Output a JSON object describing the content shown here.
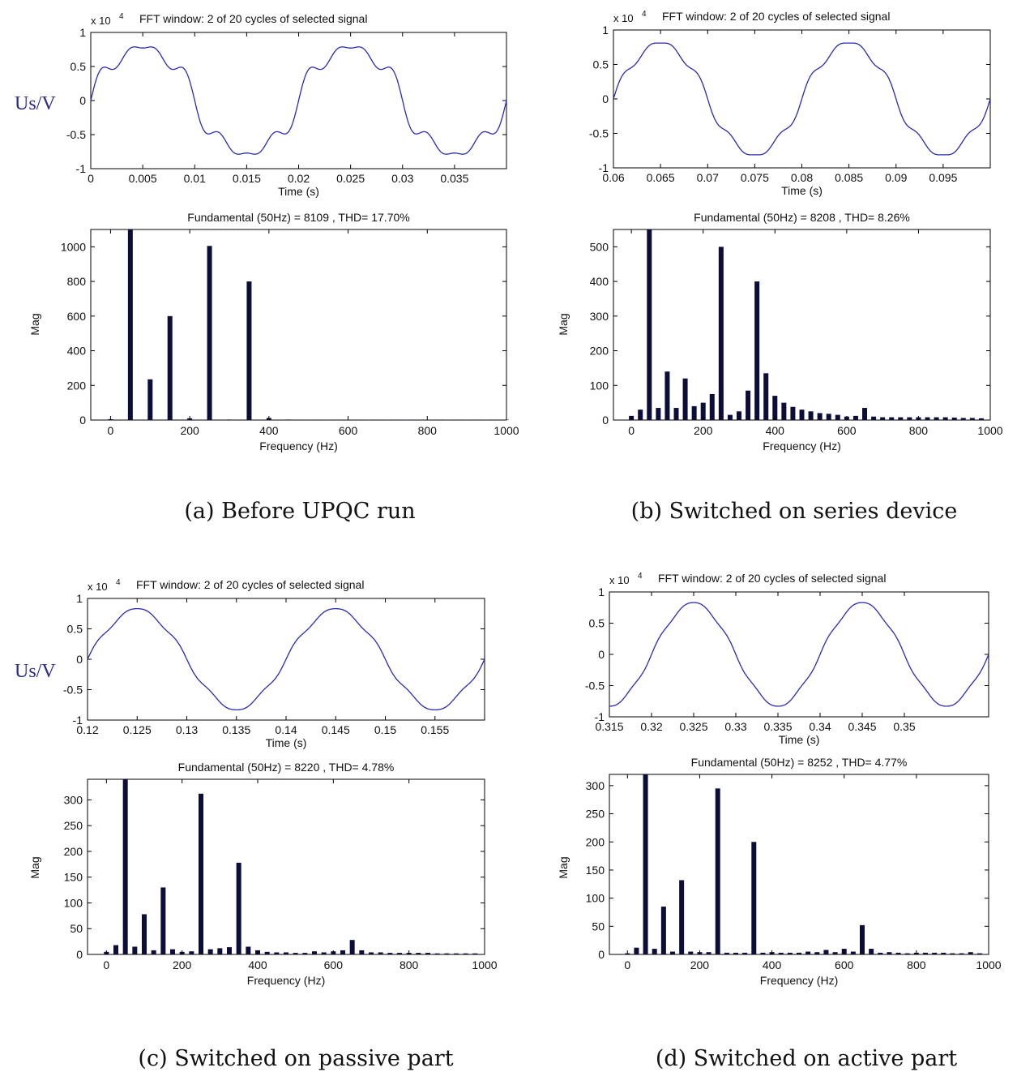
{
  "figure": {
    "captions": [
      "(a) Before UPQC run",
      "(b) Switched on series device",
      "(c) Switched on passive part",
      "(d) Switched on active part"
    ],
    "us_label": "Us/V",
    "colors": {
      "waveform": "#2b2bb0",
      "bars": "#0d0d3a",
      "axes": "#000000"
    }
  },
  "chart_data": [
    {
      "panel": "a",
      "waveform": {
        "type": "line",
        "title": "FFT window: 2 of 20 cycles of selected signal",
        "exponent_label": "x 10",
        "exponent": "4",
        "xlabel": "Time (s)",
        "ylabel": "",
        "xlim": [
          0,
          0.04
        ],
        "ylim": [
          -1,
          1
        ],
        "xticks": [
          "0",
          "0.005",
          "0.01",
          "0.015",
          "0.02",
          "0.025",
          "0.03",
          "0.035"
        ],
        "xtick_values": [
          0,
          0.005,
          0.01,
          0.015,
          0.02,
          0.025,
          0.03,
          0.035
        ],
        "yticks": [
          "1",
          "0.5",
          "0",
          "-0.5",
          "-1"
        ],
        "ytick_values": [
          1,
          0.5,
          0,
          -0.5,
          -1
        ],
        "t0": 0,
        "fundamental": 0.811,
        "harmonics": [
          {
            "n": 3,
            "amp": 0.06
          },
          {
            "n": 5,
            "amp": 0.1
          },
          {
            "n": 7,
            "amp": 0.08
          }
        ]
      },
      "spectrum": {
        "type": "bar",
        "title": "Fundamental (50Hz) = 8109 , THD= 17.70%",
        "xlabel": "Frequency (Hz)",
        "ylabel": "Mag",
        "xlim": [
          -50,
          1000
        ],
        "ylim": [
          0,
          1100
        ],
        "xticks": [
          0,
          200,
          400,
          600,
          800,
          1000
        ],
        "yticks": [
          0,
          200,
          400,
          600,
          800,
          1000
        ],
        "x": [
          0,
          50,
          100,
          150,
          200,
          250,
          300,
          350,
          400,
          450,
          500,
          550,
          600,
          650,
          700,
          750,
          800,
          850,
          900,
          950,
          1000
        ],
        "values": [
          5,
          1100,
          235,
          600,
          10,
          1005,
          3,
          800,
          12,
          3,
          2,
          2,
          2,
          2,
          2,
          2,
          2,
          2,
          2,
          2,
          2
        ]
      }
    },
    {
      "panel": "b",
      "waveform": {
        "type": "line",
        "title": "FFT window: 2 of 20 cycles of selected signal",
        "exponent_label": "x 10",
        "exponent": "4",
        "xlabel": "Time (s)",
        "ylabel": "",
        "xlim": [
          0.06,
          0.1
        ],
        "ylim": [
          -1,
          1
        ],
        "xticks": [
          "0.06",
          "0.065",
          "0.07",
          "0.075",
          "0.08",
          "0.085",
          "0.09",
          "0.095"
        ],
        "xtick_values": [
          0.06,
          0.065,
          0.07,
          0.075,
          0.08,
          0.085,
          0.09,
          0.095
        ],
        "yticks": [
          "1",
          "0.5",
          "0",
          "-0.5",
          "-1"
        ],
        "ytick_values": [
          1,
          0.5,
          0,
          -0.5,
          -1
        ],
        "t0": 0.06,
        "fundamental": 0.821,
        "harmonics": [
          {
            "n": 3,
            "amp": 0.02
          },
          {
            "n": 5,
            "amp": 0.05
          },
          {
            "n": 7,
            "amp": 0.04
          }
        ]
      },
      "spectrum": {
        "type": "bar",
        "title": "Fundamental (50Hz) = 8208 , THD= 8.26%",
        "xlabel": "Frequency (Hz)",
        "ylabel": "Mag",
        "xlim": [
          -50,
          1000
        ],
        "ylim": [
          0,
          550
        ],
        "xticks": [
          0,
          200,
          400,
          600,
          800,
          1000
        ],
        "yticks": [
          0,
          100,
          200,
          300,
          400,
          500
        ],
        "x": [
          0,
          25,
          50,
          75,
          100,
          125,
          150,
          175,
          200,
          225,
          250,
          275,
          300,
          325,
          350,
          375,
          400,
          425,
          450,
          475,
          500,
          525,
          550,
          575,
          600,
          625,
          650,
          675,
          700,
          725,
          750,
          775,
          800,
          825,
          850,
          875,
          900,
          925,
          950,
          975
        ],
        "values": [
          12,
          30,
          550,
          35,
          140,
          35,
          120,
          40,
          50,
          75,
          500,
          15,
          25,
          85,
          400,
          135,
          70,
          50,
          38,
          30,
          25,
          20,
          18,
          15,
          10,
          12,
          35,
          10,
          8,
          8,
          8,
          8,
          8,
          8,
          8,
          8,
          7,
          6,
          6,
          5
        ]
      }
    },
    {
      "panel": "c",
      "waveform": {
        "type": "line",
        "title": "FFT window: 2 of 20 cycles of selected signal",
        "exponent_label": "x 10",
        "exponent": "4",
        "xlabel": "Time (s)",
        "ylabel": "",
        "xlim": [
          0.12,
          0.16
        ],
        "ylim": [
          -1,
          1
        ],
        "xticks": [
          "0.12",
          "0.125",
          "0.13",
          "0.135",
          "0.14",
          "0.145",
          "0.15",
          "0.155"
        ],
        "xtick_values": [
          0.12,
          0.125,
          0.13,
          0.135,
          0.14,
          0.145,
          0.15,
          0.155
        ],
        "yticks": [
          "1",
          "0.5",
          "0",
          "-0.5",
          "-1"
        ],
        "ytick_values": [
          1,
          0.5,
          0,
          -0.5,
          -1
        ],
        "t0": 0.12,
        "fundamental": 0.822,
        "harmonics": [
          {
            "n": 5,
            "amp": 0.03
          },
          {
            "n": 7,
            "amp": 0.02
          }
        ]
      },
      "spectrum": {
        "type": "bar",
        "title": "Fundamental (50Hz) = 8220 , THD= 4.78%",
        "xlabel": "Frequency (Hz)",
        "ylabel": "Mag",
        "xlim": [
          -50,
          1000
        ],
        "ylim": [
          0,
          340
        ],
        "xticks": [
          0,
          200,
          400,
          600,
          800,
          1000
        ],
        "yticks": [
          0,
          50,
          100,
          150,
          200,
          250,
          300
        ],
        "x": [
          0,
          25,
          50,
          75,
          100,
          125,
          150,
          175,
          200,
          225,
          250,
          275,
          300,
          325,
          350,
          375,
          400,
          425,
          450,
          475,
          500,
          525,
          550,
          575,
          600,
          625,
          650,
          675,
          700,
          725,
          750,
          775,
          800,
          825,
          850,
          875,
          900,
          925,
          950,
          975
        ],
        "values": [
          5,
          18,
          340,
          15,
          78,
          8,
          130,
          10,
          5,
          6,
          312,
          10,
          12,
          14,
          178,
          15,
          8,
          5,
          4,
          4,
          3,
          3,
          6,
          4,
          6,
          8,
          28,
          8,
          4,
          4,
          3,
          3,
          3,
          3,
          3,
          2,
          2,
          2,
          2,
          2
        ]
      }
    },
    {
      "panel": "d",
      "waveform": {
        "type": "line",
        "title": "FFT window: 2 of 20 cycles of selected signal",
        "exponent_label": "x 10",
        "exponent": "4",
        "xlabel": "Time (s)",
        "ylabel": "",
        "xlim": [
          0.315,
          0.36
        ],
        "ylim": [
          -1,
          1
        ],
        "xticks": [
          "0.315",
          "0.32",
          "0.325",
          "0.33",
          "0.335",
          "0.34",
          "0.345",
          "0.35"
        ],
        "xtick_values": [
          0.315,
          0.32,
          0.325,
          0.33,
          0.335,
          0.34,
          0.345,
          0.35
        ],
        "yticks": [
          "1",
          "0.5",
          "0",
          "-0.5",
          "-1"
        ],
        "ytick_values": [
          1,
          0.5,
          0,
          -0.5,
          -1
        ],
        "t0": 0.32,
        "fundamental": 0.825,
        "harmonics": [
          {
            "n": 5,
            "amp": 0.02
          },
          {
            "n": 7,
            "amp": 0.015
          }
        ]
      },
      "spectrum": {
        "type": "bar",
        "title": "Fundamental (50Hz) = 8252 , THD= 4.77%",
        "xlabel": "Frequency (Hz)",
        "ylabel": "Mag",
        "xlim": [
          -50,
          1000
        ],
        "ylim": [
          0,
          320
        ],
        "xticks": [
          0,
          200,
          400,
          600,
          800,
          1000
        ],
        "yticks": [
          0,
          50,
          100,
          150,
          200,
          250,
          300
        ],
        "x": [
          0,
          25,
          50,
          75,
          100,
          125,
          150,
          175,
          200,
          225,
          250,
          275,
          300,
          325,
          350,
          375,
          400,
          425,
          450,
          475,
          500,
          525,
          550,
          575,
          600,
          625,
          650,
          675,
          700,
          725,
          750,
          775,
          800,
          825,
          850,
          875,
          900,
          925,
          950,
          975
        ],
        "values": [
          2,
          12,
          320,
          10,
          85,
          5,
          132,
          5,
          4,
          4,
          295,
          3,
          3,
          3,
          200,
          3,
          4,
          3,
          3,
          3,
          5,
          4,
          8,
          4,
          10,
          5,
          52,
          10,
          3,
          4,
          3,
          2,
          3,
          3,
          3,
          3,
          2,
          2,
          4,
          2
        ]
      }
    }
  ]
}
